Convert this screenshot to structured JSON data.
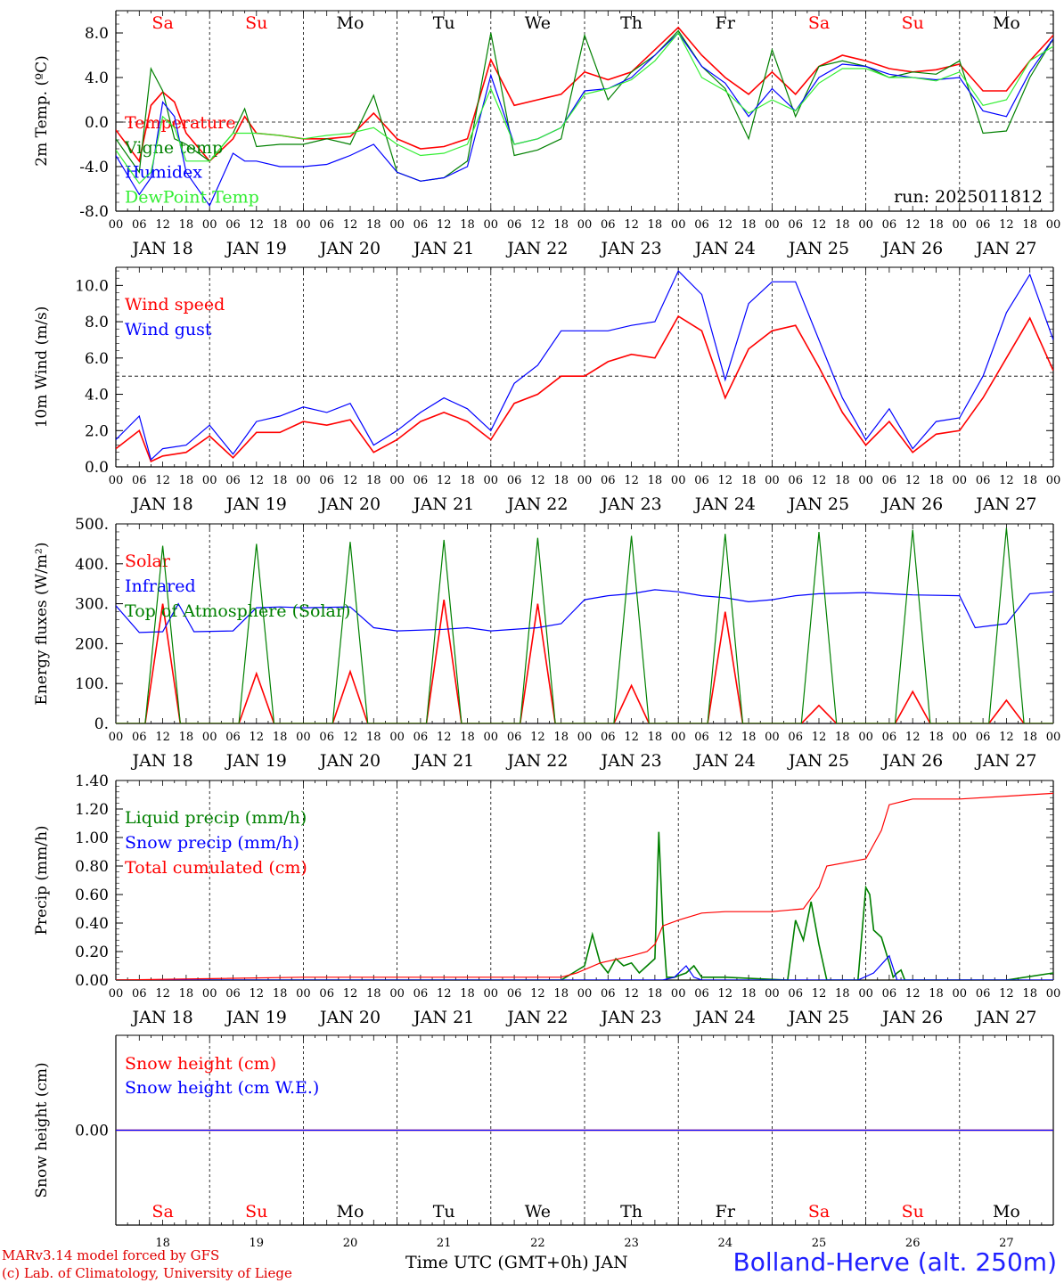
{
  "footer": {
    "credit_line1": "MARv3.14 model forced by GFS",
    "credit_line2": "(c) Lab. of Climatology, University of Liege",
    "x_title": "Time UTC (GMT+0h) JAN",
    "station": "Bolland-Herve (alt. 250m)"
  },
  "colors": {
    "red": "#ff0000",
    "green": "#008000",
    "blue": "#0000ff",
    "lightgreen": "#33ee33",
    "weekend": "#ff0000",
    "weekday": "#000000"
  },
  "chart_data": [
    {
      "type": "line",
      "ylabel": "2m Temp. (ºC)",
      "ylim": [
        -8,
        10
      ],
      "yticks": [
        "-8.0",
        "-4.0",
        "0.0",
        "4.0",
        "8.0"
      ],
      "ytick_values": [
        -8,
        -4,
        0,
        4,
        8
      ],
      "ref_line": 0,
      "annotation": "run: 2025011812",
      "day_names": [
        "Sa",
        "Su",
        "Mo",
        "Tu",
        "We",
        "Th",
        "Fr",
        "Sa",
        "Su",
        "Mo"
      ],
      "day_name_weekend": [
        true,
        true,
        false,
        false,
        false,
        false,
        false,
        true,
        true,
        false
      ],
      "hour_ticks": [
        "00",
        "06",
        "12",
        "18"
      ],
      "date_labels": [
        "JAN 18",
        "JAN 19",
        "JAN 20",
        "JAN 21",
        "JAN 22",
        "JAN 23",
        "JAN 24",
        "JAN 25",
        "JAN 26",
        "JAN 27"
      ],
      "x_hours": [
        0,
        6,
        9,
        12,
        15,
        18,
        24,
        30,
        33,
        36,
        42,
        48,
        54,
        60,
        66,
        72,
        78,
        84,
        90,
        96,
        102,
        108,
        114,
        120,
        126,
        132,
        138,
        144,
        150,
        156,
        162,
        168,
        174,
        180,
        186,
        192,
        198,
        204,
        210,
        216,
        222,
        228,
        234,
        240
      ],
      "series": [
        {
          "name": "Temperature",
          "color": "#ff0000",
          "values": [
            -0.7,
            -3.5,
            1.5,
            2.7,
            1.8,
            -1.0,
            -3.5,
            -1.5,
            0.5,
            -1.0,
            -1.2,
            -1.5,
            -1.5,
            -1.3,
            0.8,
            -1.5,
            -2.4,
            -2.2,
            -1.5,
            5.6,
            1.5,
            2.0,
            2.5,
            4.5,
            3.8,
            4.5,
            6.5,
            8.5,
            6.0,
            4.0,
            2.5,
            4.5,
            2.5,
            5.0,
            6.0,
            5.5,
            4.8,
            4.5,
            4.7,
            5.2,
            2.8,
            2.8,
            5.5,
            7.8
          ]
        },
        {
          "name": "Vigne temp",
          "color": "#008000",
          "values": [
            -1.5,
            -4.5,
            4.8,
            2.8,
            -1.5,
            -2.0,
            -3.5,
            -1.0,
            1.2,
            -2.2,
            -2.0,
            -2.0,
            -1.5,
            -2.0,
            2.4,
            -4.5,
            -5.3,
            -5.0,
            -3.5,
            8.0,
            -3.0,
            -2.5,
            -1.5,
            7.8,
            2.0,
            4.5,
            6.0,
            8.2,
            5.0,
            3.0,
            -1.5,
            6.5,
            0.5,
            5.0,
            5.5,
            5.0,
            4.0,
            4.5,
            4.3,
            5.5,
            -1.0,
            -0.8,
            4.0,
            7.5
          ]
        },
        {
          "name": "Humidex",
          "color": "#0000ff",
          "values": [
            -3.0,
            -6.5,
            -5.0,
            1.8,
            0.5,
            -4.5,
            -7.5,
            -2.8,
            -3.5,
            -3.5,
            -4.0,
            -4.0,
            -3.8,
            -3.0,
            -2.0,
            -4.5,
            -5.3,
            -5.0,
            -4.0,
            4.2,
            -2.0,
            -1.5,
            -0.5,
            2.8,
            3.0,
            4.0,
            6.0,
            8.0,
            5.0,
            3.5,
            0.5,
            3.0,
            1.0,
            4.0,
            5.2,
            5.0,
            4.3,
            4.0,
            3.8,
            4.0,
            1.0,
            0.5,
            4.5,
            7.5
          ]
        },
        {
          "name": "DewPoint Temp",
          "color": "#33ee33",
          "values": [
            -2.5,
            -5.5,
            -4.5,
            0.5,
            -0.5,
            -3.5,
            -3.5,
            -1.0,
            -1.0,
            -1.0,
            -1.2,
            -1.5,
            -1.2,
            -1.0,
            -0.5,
            -2.0,
            -3.0,
            -2.8,
            -2.0,
            3.0,
            -2.0,
            -1.5,
            -0.5,
            2.5,
            3.0,
            3.8,
            5.5,
            8.0,
            4.0,
            2.8,
            0.8,
            2.0,
            1.0,
            3.5,
            4.8,
            4.8,
            4.0,
            4.0,
            3.7,
            4.5,
            1.5,
            2.0,
            5.5,
            6.8
          ]
        }
      ]
    },
    {
      "type": "line",
      "ylabel": "10m Wind (m/s)",
      "ylim": [
        0,
        11
      ],
      "yticks": [
        "0.0",
        "2.0",
        "4.0",
        "6.0",
        "8.0",
        "10.0"
      ],
      "ytick_values": [
        0,
        2,
        4,
        6,
        8,
        10
      ],
      "ref_line": 5,
      "day_names": [],
      "hour_ticks": [
        "00",
        "06",
        "12",
        "18"
      ],
      "date_labels": [
        "JAN 18",
        "JAN 19",
        "JAN 20",
        "JAN 21",
        "JAN 22",
        "JAN 23",
        "JAN 24",
        "JAN 25",
        "JAN 26",
        "JAN 27"
      ],
      "x_hours": [
        0,
        6,
        9,
        12,
        18,
        24,
        30,
        36,
        42,
        48,
        54,
        60,
        66,
        72,
        78,
        84,
        90,
        96,
        102,
        108,
        114,
        120,
        126,
        132,
        138,
        144,
        150,
        156,
        162,
        168,
        174,
        180,
        186,
        192,
        198,
        204,
        210,
        216,
        222,
        228,
        234,
        240
      ],
      "series": [
        {
          "name": "Wind speed",
          "color": "#ff0000",
          "values": [
            1.0,
            2.0,
            0.3,
            0.6,
            0.8,
            1.7,
            0.5,
            1.9,
            1.9,
            2.5,
            2.3,
            2.6,
            0.8,
            1.5,
            2.5,
            3.0,
            2.5,
            1.5,
            3.5,
            4.0,
            5.0,
            5.0,
            5.8,
            6.2,
            6.0,
            8.3,
            7.5,
            3.8,
            6.5,
            7.5,
            7.8,
            5.5,
            3.0,
            1.2,
            2.5,
            0.8,
            1.8,
            2.0,
            3.8,
            6.0,
            8.2,
            5.3
          ]
        },
        {
          "name": "Wind gust",
          "color": "#0000ff",
          "values": [
            1.5,
            2.8,
            0.4,
            1.0,
            1.2,
            2.3,
            0.7,
            2.5,
            2.8,
            3.3,
            3.0,
            3.5,
            1.2,
            2.0,
            3.0,
            3.8,
            3.2,
            2.0,
            4.6,
            5.6,
            7.5,
            7.5,
            7.5,
            7.8,
            8.0,
            10.8,
            9.5,
            4.8,
            9.0,
            10.2,
            10.2,
            7.0,
            3.8,
            1.5,
            3.2,
            1.0,
            2.5,
            2.7,
            5.0,
            8.5,
            10.6,
            7.0
          ]
        }
      ]
    },
    {
      "type": "line",
      "ylabel": "Energy fluxes (W/m²)",
      "ylim": [
        0,
        500
      ],
      "yticks": [
        "0.",
        "100.",
        "200.",
        "300.",
        "400.",
        "500."
      ],
      "ytick_values": [
        0,
        100,
        200,
        300,
        400,
        500
      ],
      "day_names": [],
      "hour_ticks": [
        "00",
        "06",
        "12",
        "18"
      ],
      "date_labels": [
        "JAN 18",
        "JAN 19",
        "JAN 20",
        "JAN 21",
        "JAN 22",
        "JAN 23",
        "JAN 24",
        "JAN 25",
        "JAN 26",
        "JAN 27"
      ],
      "series": [
        {
          "name": "Solar",
          "color": "#ff0000",
          "peaks": [
            300,
            125,
            130,
            310,
            300,
            95,
            280,
            45,
            80,
            58
          ]
        },
        {
          "name": "Infrared",
          "color": "#0000ff",
          "x": [
            0,
            6,
            12,
            16,
            20,
            30,
            36,
            42,
            48,
            60,
            66,
            72,
            84,
            90,
            96,
            108,
            114,
            120,
            126,
            132,
            138,
            144,
            150,
            156,
            162,
            168,
            174,
            180,
            192,
            204,
            216,
            220,
            228,
            234,
            240
          ],
          "values": [
            295,
            228,
            230,
            300,
            230,
            232,
            290,
            292,
            290,
            292,
            240,
            232,
            236,
            240,
            232,
            240,
            250,
            310,
            320,
            325,
            335,
            330,
            320,
            315,
            305,
            310,
            320,
            325,
            328,
            322,
            320,
            240,
            250,
            325,
            330
          ]
        },
        {
          "name": "Top of Atmosphere (Solar)",
          "color": "#008000",
          "peaks": [
            445,
            450,
            455,
            460,
            465,
            470,
            475,
            480,
            485,
            490
          ]
        }
      ],
      "daylight_hours": [
        7.5,
        16.5
      ]
    },
    {
      "type": "line",
      "ylabel": "Precip (mm/h)",
      "ylim": [
        0,
        1.4
      ],
      "yticks": [
        "0.00",
        "0.20",
        "0.40",
        "0.60",
        "0.80",
        "1.00",
        "1.20",
        "1.40"
      ],
      "ytick_values": [
        0,
        0.2,
        0.4,
        0.6,
        0.8,
        1.0,
        1.2,
        1.4
      ],
      "day_names": [],
      "hour_ticks": [
        "00",
        "06",
        "12",
        "18"
      ],
      "date_labels": [
        "JAN 18",
        "JAN 19",
        "JAN 20",
        "JAN 21",
        "JAN 22",
        "JAN 23",
        "JAN 24",
        "JAN 25",
        "JAN 26",
        "JAN 27"
      ],
      "series": [
        {
          "name": "Liquid precip (mm/h)",
          "color": "#008000",
          "x": [
            0,
            114,
            117,
            120,
            122,
            124,
            126,
            128,
            130,
            132,
            134,
            136,
            138,
            139,
            140,
            141,
            143,
            146,
            148,
            150,
            156,
            172,
            174,
            176,
            178,
            180,
            182,
            184,
            186,
            190,
            192,
            193,
            194,
            196,
            198,
            199,
            200,
            201,
            202,
            204,
            228,
            240
          ],
          "values": [
            0,
            0,
            0.05,
            0.1,
            0.32,
            0.12,
            0.05,
            0.15,
            0.1,
            0.12,
            0.05,
            0.1,
            0.15,
            1.04,
            0.4,
            0.02,
            0.02,
            0.05,
            0.1,
            0.02,
            0.02,
            0.0,
            0.42,
            0.28,
            0.55,
            0.25,
            0.0,
            0.0,
            0.0,
            0.0,
            0.65,
            0.6,
            0.35,
            0.3,
            0.12,
            0.02,
            0.05,
            0.07,
            0.0,
            0.0,
            0.0,
            0.05
          ]
        },
        {
          "name": "Snow precip (mm/h)",
          "color": "#0000ff",
          "x": [
            0,
            140,
            143,
            146,
            148,
            150,
            190,
            194,
            198,
            200,
            240
          ],
          "values": [
            0,
            0,
            0.02,
            0.1,
            0.02,
            0,
            0,
            0.05,
            0.17,
            0.0,
            0
          ]
        },
        {
          "name": "Total cumulated (cm)",
          "color": "#ff0000",
          "x": [
            0,
            48,
            114,
            118,
            124,
            132,
            136,
            138,
            140,
            144,
            150,
            156,
            168,
            176,
            180,
            182,
            192,
            196,
            198,
            204,
            216,
            240
          ],
          "values": [
            0,
            0.02,
            0.02,
            0.05,
            0.12,
            0.17,
            0.2,
            0.25,
            0.38,
            0.42,
            0.47,
            0.48,
            0.48,
            0.5,
            0.65,
            0.8,
            0.85,
            1.05,
            1.23,
            1.27,
            1.27,
            1.31
          ]
        }
      ]
    },
    {
      "type": "line",
      "ylabel": "Snow height (cm)",
      "ylim": [
        -1,
        1
      ],
      "yticks": [
        "0.00"
      ],
      "ytick_values": [
        0
      ],
      "day_names": [
        "Sa",
        "Su",
        "Mo",
        "Tu",
        "We",
        "Th",
        "Fr",
        "Sa",
        "Su",
        "Mo"
      ],
      "day_name_weekend": [
        true,
        true,
        false,
        false,
        false,
        false,
        false,
        true,
        true,
        false
      ],
      "date_labels": [
        "18",
        "19",
        "20",
        "21",
        "22",
        "23",
        "24",
        "25",
        "26",
        "27"
      ],
      "series": [
        {
          "name": "Snow height (cm)",
          "color": "#ff0000",
          "values": [
            0,
            0
          ]
        },
        {
          "name": "Snow height (cm W.E.)",
          "color": "#0000ff",
          "values": [
            0,
            0
          ]
        }
      ]
    }
  ]
}
